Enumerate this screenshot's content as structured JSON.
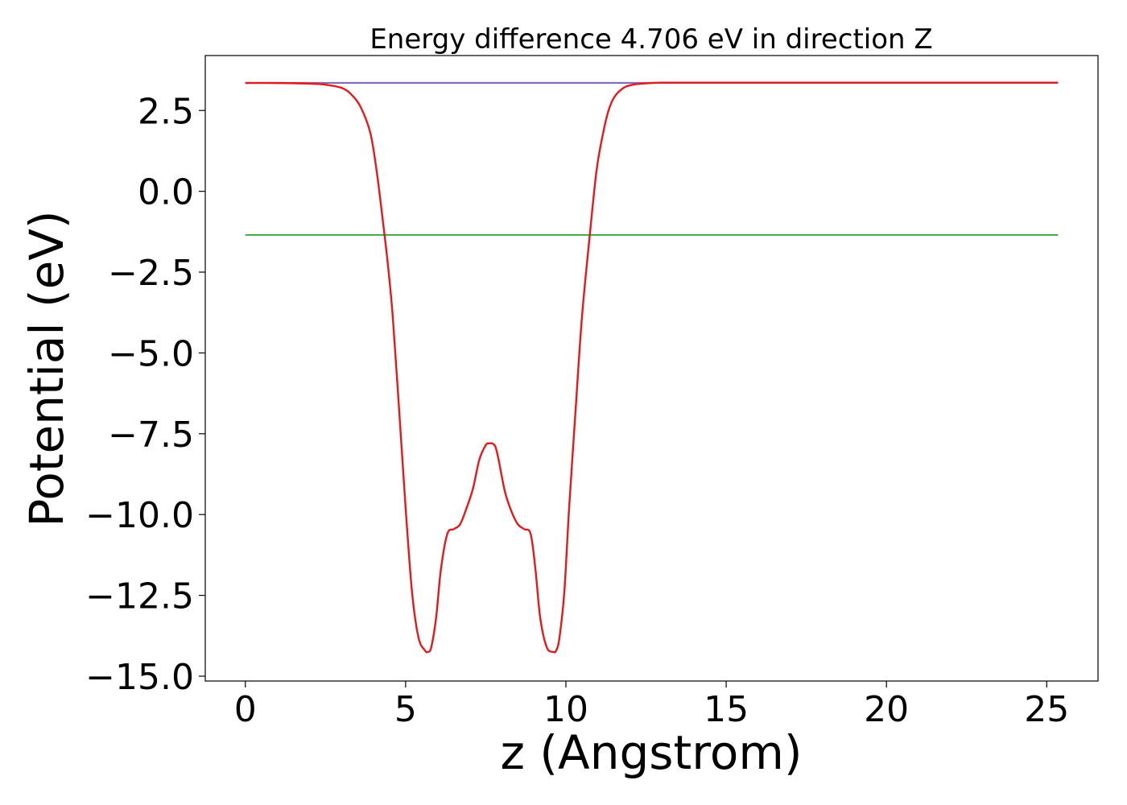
{
  "chart_data": {
    "type": "line",
    "title": "Energy difference 4.706 eV in direction Z",
    "xlabel": "z (Angstrom)",
    "ylabel": "Potential (eV)",
    "xlim": [
      -1.25,
      26.6
    ],
    "ylim": [
      -15.15,
      4.2
    ],
    "xticks": [
      0,
      5,
      10,
      15,
      20,
      25
    ],
    "yticks": [
      2.5,
      0.0,
      -2.5,
      -5.0,
      -7.5,
      -10.0,
      -12.5,
      -15.0
    ],
    "xtick_labels": [
      "0",
      "5",
      "10",
      "15",
      "20",
      "25"
    ],
    "ytick_labels": [
      "2.5",
      "0.0",
      "−2.5",
      "−5.0",
      "−7.5",
      "−10.0",
      "−12.5",
      "−15.0"
    ],
    "grid": false,
    "series": [
      {
        "color": "#1f77b4",
        "x": [
          0,
          25.35
        ],
        "y": [
          3.35,
          3.35
        ]
      },
      {
        "color": "#2ca02c",
        "x": [
          0,
          25.35
        ],
        "y": [
          -1.35,
          -1.35
        ]
      },
      {
        "color": "#9467bd",
        "x": [
          0,
          25.35
        ],
        "y": [
          3.36,
          3.36
        ]
      },
      {
        "color": "#e31a1c",
        "x": [
          0,
          1.0,
          2.0,
          2.5,
          3.0,
          3.3,
          3.6,
          3.9,
          4.1,
          4.3,
          4.45,
          4.6,
          4.8,
          5.0,
          5.2,
          5.4,
          5.6,
          5.7,
          5.8,
          5.95,
          6.1,
          6.3,
          6.5,
          6.7,
          6.9,
          7.1,
          7.3,
          7.5,
          7.6,
          7.7,
          7.8,
          7.9,
          8.1,
          8.3,
          8.5,
          8.7,
          8.9,
          9.05,
          9.2,
          9.4,
          9.6,
          9.7,
          9.8,
          9.95,
          10.1,
          10.3,
          10.5,
          10.75,
          10.95,
          11.1,
          11.3,
          11.5,
          11.8,
          12.1,
          12.5,
          13.0,
          14.0,
          16.0,
          20.0,
          25.35
        ],
        "y": [
          3.35,
          3.35,
          3.33,
          3.3,
          3.2,
          3.0,
          2.6,
          1.8,
          0.6,
          -1.0,
          -2.3,
          -3.9,
          -6.8,
          -9.8,
          -12.4,
          -13.8,
          -14.2,
          -14.25,
          -14.1,
          -13.2,
          -11.7,
          -10.6,
          -10.45,
          -10.3,
          -9.8,
          -9.2,
          -8.3,
          -7.85,
          -7.8,
          -7.8,
          -7.9,
          -8.3,
          -9.3,
          -9.9,
          -10.3,
          -10.45,
          -10.6,
          -11.7,
          -13.2,
          -14.1,
          -14.25,
          -14.2,
          -13.8,
          -12.4,
          -9.8,
          -6.8,
          -3.9,
          -1.3,
          0.6,
          1.5,
          2.4,
          2.9,
          3.2,
          3.3,
          3.34,
          3.36,
          3.36,
          3.36,
          3.36,
          3.36
        ]
      }
    ]
  }
}
